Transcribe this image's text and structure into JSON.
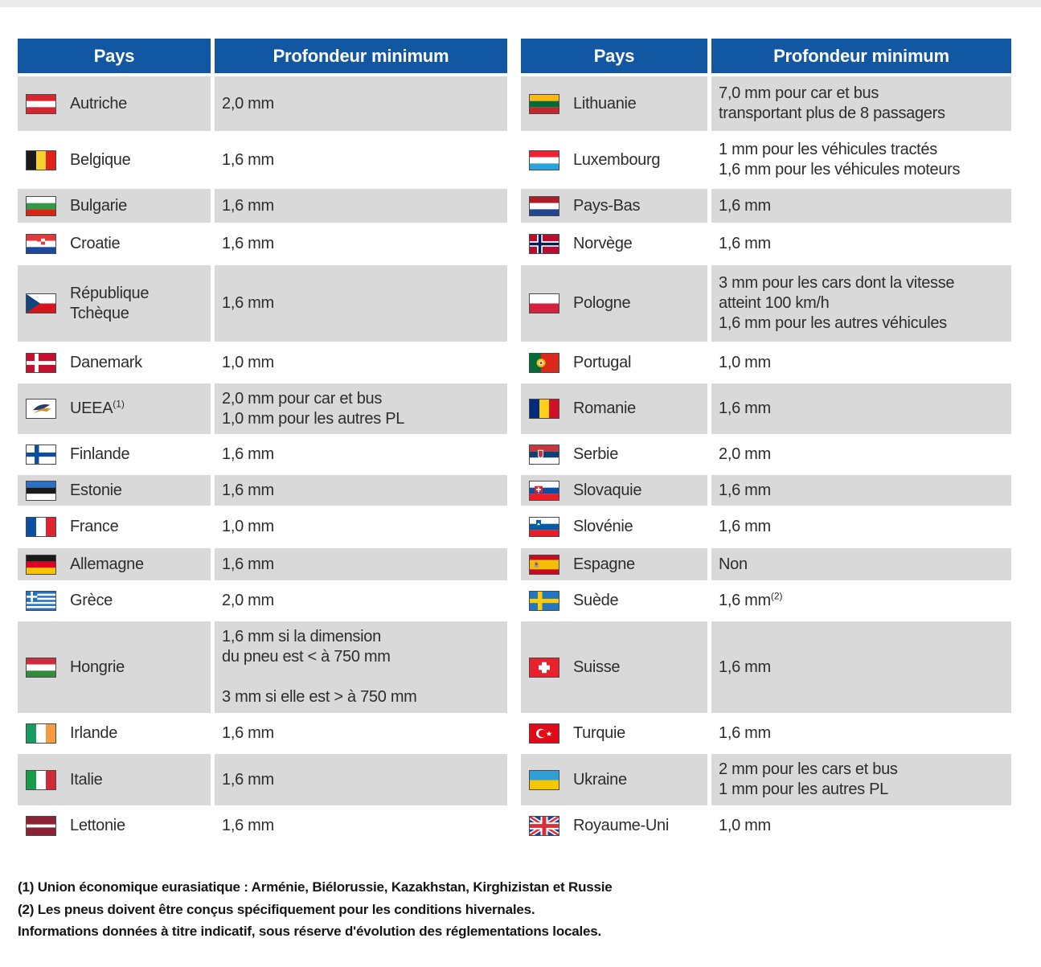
{
  "table": {
    "headers": {
      "pays_left": "Pays",
      "profondeur_left": "Profondeur minimum",
      "pays_right": "Pays",
      "profondeur_right": "Profondeur minimum"
    },
    "rows": [
      {
        "left": {
          "flag": "austria",
          "country": "Autriche",
          "country_sup": "",
          "value": "2,0 mm",
          "value_sup": ""
        },
        "right": {
          "flag": "lithuania",
          "country": "Lithuanie",
          "country_sup": "",
          "value": "7,0 mm pour car et bus\ntransportant plus de 8 passagers",
          "value_sup": ""
        }
      },
      {
        "left": {
          "flag": "belgium",
          "country": "Belgique",
          "country_sup": "",
          "value": "1,6 mm",
          "value_sup": ""
        },
        "right": {
          "flag": "luxembourg",
          "country": "Luxembourg",
          "country_sup": "",
          "value": "1 mm pour les véhicules tractés\n1,6 mm pour les véhicules moteurs",
          "value_sup": ""
        }
      },
      {
        "left": {
          "flag": "bulgaria",
          "country": "Bulgarie",
          "country_sup": "",
          "value": "1,6 mm",
          "value_sup": ""
        },
        "right": {
          "flag": "netherlands",
          "country": "Pays-Bas",
          "country_sup": "",
          "value": "1,6 mm",
          "value_sup": ""
        }
      },
      {
        "left": {
          "flag": "croatia",
          "country": "Croatie",
          "country_sup": "",
          "value": "1,6 mm",
          "value_sup": ""
        },
        "right": {
          "flag": "norway",
          "country": "Norvège",
          "country_sup": "",
          "value": "1,6 mm",
          "value_sup": ""
        }
      },
      {
        "left": {
          "flag": "czech",
          "country": "République\nTchèque",
          "country_sup": "",
          "value": "1,6 mm",
          "value_sup": ""
        },
        "right": {
          "flag": "poland",
          "country": "Pologne",
          "country_sup": "",
          "value": "3 mm pour les cars dont la vitesse\natteint 100 km/h\n1,6 mm pour les autres véhicules",
          "value_sup": ""
        }
      },
      {
        "left": {
          "flag": "denmark",
          "country": "Danemark",
          "country_sup": "",
          "value": "1,0 mm",
          "value_sup": ""
        },
        "right": {
          "flag": "portugal",
          "country": "Portugal",
          "country_sup": "",
          "value": "1,0 mm",
          "value_sup": ""
        }
      },
      {
        "left": {
          "flag": "ueea",
          "country": "UEEA",
          "country_sup": "(1)",
          "value": "2,0 mm pour car et bus\n1,0 mm pour les autres PL",
          "value_sup": ""
        },
        "right": {
          "flag": "romania",
          "country": "Romanie",
          "country_sup": "",
          "value": "1,6 mm",
          "value_sup": ""
        }
      },
      {
        "left": {
          "flag": "finland",
          "country": "Finlande",
          "country_sup": "",
          "value": "1,6 mm",
          "value_sup": ""
        },
        "right": {
          "flag": "serbia",
          "country": "Serbie",
          "country_sup": "",
          "value": "2,0 mm",
          "value_sup": ""
        }
      },
      {
        "left": {
          "flag": "estonia",
          "country": "Estonie",
          "country_sup": "",
          "value": "1,6 mm",
          "value_sup": ""
        },
        "right": {
          "flag": "slovakia",
          "country": "Slovaquie",
          "country_sup": "",
          "value": "1,6 mm",
          "value_sup": ""
        }
      },
      {
        "left": {
          "flag": "france",
          "country": "France",
          "country_sup": "",
          "value": "1,0 mm",
          "value_sup": ""
        },
        "right": {
          "flag": "slovenia",
          "country": "Slovénie",
          "country_sup": "",
          "value": "1,6 mm",
          "value_sup": ""
        }
      },
      {
        "left": {
          "flag": "germany",
          "country": "Allemagne",
          "country_sup": "",
          "value": "1,6 mm",
          "value_sup": ""
        },
        "right": {
          "flag": "spain",
          "country": "Espagne",
          "country_sup": "",
          "value": "Non",
          "value_sup": ""
        }
      },
      {
        "left": {
          "flag": "greece",
          "country": "Grèce",
          "country_sup": "",
          "value": "2,0 mm",
          "value_sup": ""
        },
        "right": {
          "flag": "sweden",
          "country": "Suède",
          "country_sup": "",
          "value": "1,6 mm",
          "value_sup": "(2)"
        }
      },
      {
        "left": {
          "flag": "hungary",
          "country": "Hongrie",
          "country_sup": "",
          "value": "1,6 mm si la dimension\ndu pneu est < à 750 mm\n\n3 mm si elle est > à 750 mm",
          "value_sup": ""
        },
        "right": {
          "flag": "switzerland",
          "country": "Suisse",
          "country_sup": "",
          "value": "1,6 mm",
          "value_sup": ""
        }
      },
      {
        "left": {
          "flag": "ireland",
          "country": "Irlande",
          "country_sup": "",
          "value": "1,6 mm",
          "value_sup": ""
        },
        "right": {
          "flag": "turkey",
          "country": "Turquie",
          "country_sup": "",
          "value": "1,6 mm",
          "value_sup": ""
        }
      },
      {
        "left": {
          "flag": "italy",
          "country": "Italie",
          "country_sup": "",
          "value": "1,6 mm",
          "value_sup": ""
        },
        "right": {
          "flag": "ukraine",
          "country": "Ukraine",
          "country_sup": "",
          "value": "2 mm pour les cars et bus\n1 mm pour les autres PL",
          "value_sup": ""
        }
      },
      {
        "left": {
          "flag": "latvia",
          "country": "Lettonie",
          "country_sup": "",
          "value": "1,6 mm",
          "value_sup": ""
        },
        "right": {
          "flag": "uk",
          "country": "Royaume-Uni",
          "country_sup": "",
          "value": "1,0 mm",
          "value_sup": ""
        }
      }
    ]
  },
  "footnotes": [
    "(1) Union économique eurasiatique : Arménie, Biélorussie, Kazakhstan, Kirghizistan et Russie",
    "(2) Les pneus doivent être conçus spécifiquement pour les conditions hivernales.",
    "Informations données à titre indicatif, sous réserve d'évolution des réglementations locales."
  ]
}
